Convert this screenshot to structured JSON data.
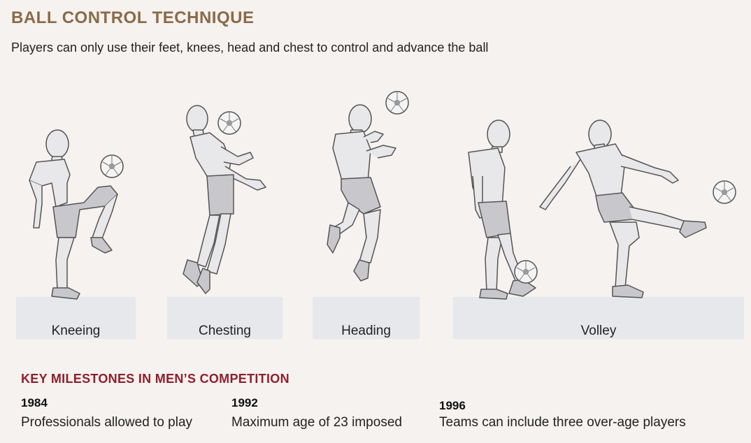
{
  "header": {
    "title": "BALL CONTROL TECHNIQUE",
    "subtitle": "Players can only use their feet, knees, head and chest to control and advance the ball"
  },
  "techniques": [
    {
      "label": "Kneeing",
      "icon": "kneeing-player-figure"
    },
    {
      "label": "Chesting",
      "icon": "chesting-player-figure"
    },
    {
      "label": "Heading",
      "icon": "heading-player-figure"
    },
    {
      "label": "Volley",
      "icon": "volley-player-figure"
    }
  ],
  "milestones": {
    "title": "KEY MILESTONES IN MEN’S COMPETITION",
    "items": [
      {
        "year": "1984",
        "text": "Professionals allowed to play"
      },
      {
        "year": "1992",
        "text": "Maximum age of 23 imposed"
      },
      {
        "year": "1996",
        "text": "Teams can include three over-age players"
      }
    ]
  },
  "colors": {
    "background": "#f5f2ef",
    "title": "#8a6a48",
    "milestone_title": "#8f1f2e",
    "figure_fill": "#e8e8ea",
    "shorts_fill": "#c8c8cc",
    "ground": "#e6e8ec",
    "outline": "#555555"
  }
}
